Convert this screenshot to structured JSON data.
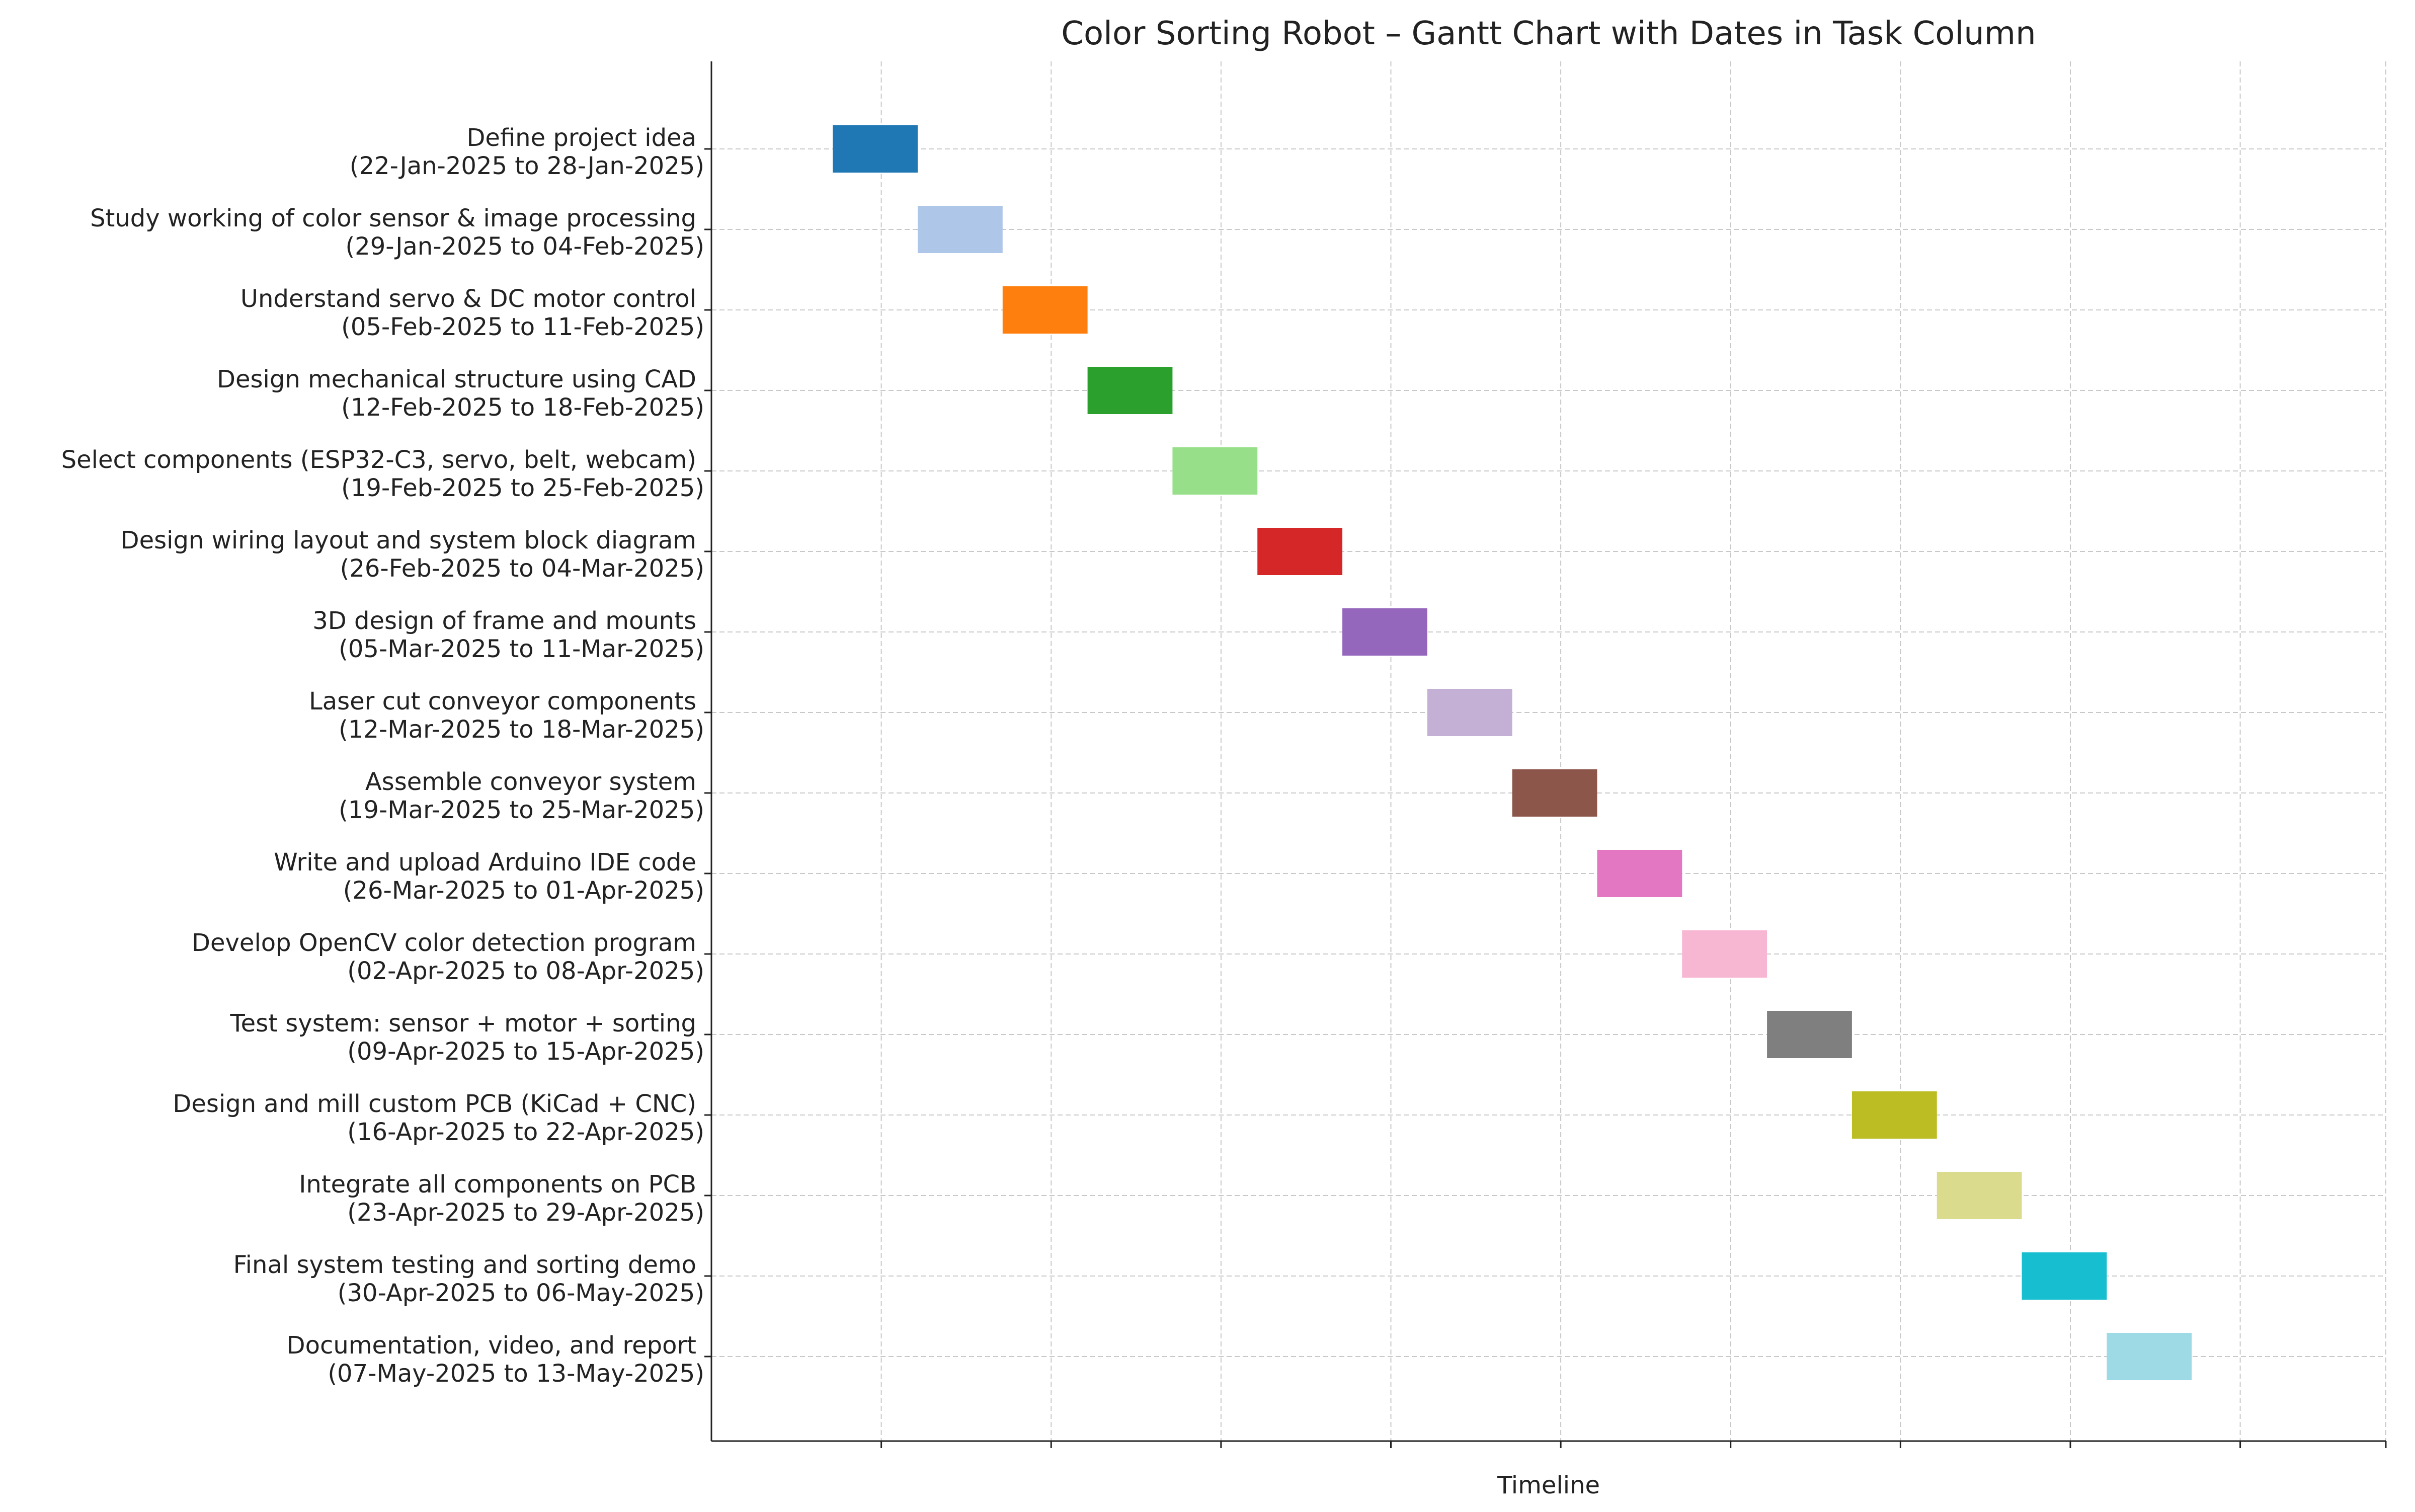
{
  "chart_data": {
    "type": "bar",
    "subtype": "gantt",
    "title": "Color Sorting Robot – Gantt Chart with Dates in Task Column",
    "xlabel": "Timeline",
    "ylabel": "",
    "x_axis": {
      "type": "date",
      "range": [
        "2025-01-12",
        "2025-05-30"
      ],
      "gridlines": "every 2 weeks",
      "tick_labels_shown": false
    },
    "grid": true,
    "tasks": [
      {
        "name": "Define project idea",
        "dates": "(22-Jan-2025 to 28-Jan-2025)",
        "start": "2025-01-22",
        "end": "2025-01-28",
        "color": "#1f77b4"
      },
      {
        "name": "Study working of color sensor & image processing",
        "dates": "(29-Jan-2025 to 04-Feb-2025)",
        "start": "2025-01-29",
        "end": "2025-02-04",
        "color": "#aec7e8"
      },
      {
        "name": "Understand servo & DC motor control",
        "dates": "(05-Feb-2025 to 11-Feb-2025)",
        "start": "2025-02-05",
        "end": "2025-02-11",
        "color": "#ff7f0e"
      },
      {
        "name": "Design mechanical structure using CAD",
        "dates": "(12-Feb-2025 to 18-Feb-2025)",
        "start": "2025-02-12",
        "end": "2025-02-18",
        "color": "#2ca02c"
      },
      {
        "name": "Select components (ESP32-C3, servo, belt, webcam)",
        "dates": "(19-Feb-2025 to 25-Feb-2025)",
        "start": "2025-02-19",
        "end": "2025-02-25",
        "color": "#98df8a"
      },
      {
        "name": "Design wiring layout and system block diagram",
        "dates": "(26-Feb-2025 to 04-Mar-2025)",
        "start": "2025-02-26",
        "end": "2025-03-04",
        "color": "#d62728"
      },
      {
        "name": "3D design of frame and mounts",
        "dates": "(05-Mar-2025 to 11-Mar-2025)",
        "start": "2025-03-05",
        "end": "2025-03-11",
        "color": "#9467bd"
      },
      {
        "name": "Laser cut conveyor components",
        "dates": "(12-Mar-2025 to 18-Mar-2025)",
        "start": "2025-03-12",
        "end": "2025-03-18",
        "color": "#c5b0d5"
      },
      {
        "name": "Assemble conveyor system",
        "dates": "(19-Mar-2025 to 25-Mar-2025)",
        "start": "2025-03-19",
        "end": "2025-03-25",
        "color": "#8c564b"
      },
      {
        "name": "Write and upload Arduino IDE code",
        "dates": "(26-Mar-2025 to 01-Apr-2025)",
        "start": "2025-03-26",
        "end": "2025-04-01",
        "color": "#e377c2"
      },
      {
        "name": "Develop OpenCV color detection program",
        "dates": "(02-Apr-2025 to 08-Apr-2025)",
        "start": "2025-04-02",
        "end": "2025-04-08",
        "color": "#f7b6d2"
      },
      {
        "name": "Test system: sensor + motor + sorting",
        "dates": "(09-Apr-2025 to 15-Apr-2025)",
        "start": "2025-04-09",
        "end": "2025-04-15",
        "color": "#7f7f7f"
      },
      {
        "name": "Design and mill custom PCB (KiCad + CNC)",
        "dates": "(16-Apr-2025 to 22-Apr-2025)",
        "start": "2025-04-16",
        "end": "2025-04-22",
        "color": "#bcbd22"
      },
      {
        "name": "Integrate all components on PCB",
        "dates": "(23-Apr-2025 to 29-Apr-2025)",
        "start": "2025-04-23",
        "end": "2025-04-29",
        "color": "#dbdb8d"
      },
      {
        "name": "Final system testing and sorting demo",
        "dates": "(30-Apr-2025 to 06-May-2025)",
        "start": "2025-04-30",
        "end": "2025-05-06",
        "color": "#17becf"
      },
      {
        "name": "Documentation, video, and report",
        "dates": "(07-May-2025 to 13-May-2025)",
        "start": "2025-05-07",
        "end": "2025-05-13",
        "color": "#9edae5"
      }
    ]
  }
}
